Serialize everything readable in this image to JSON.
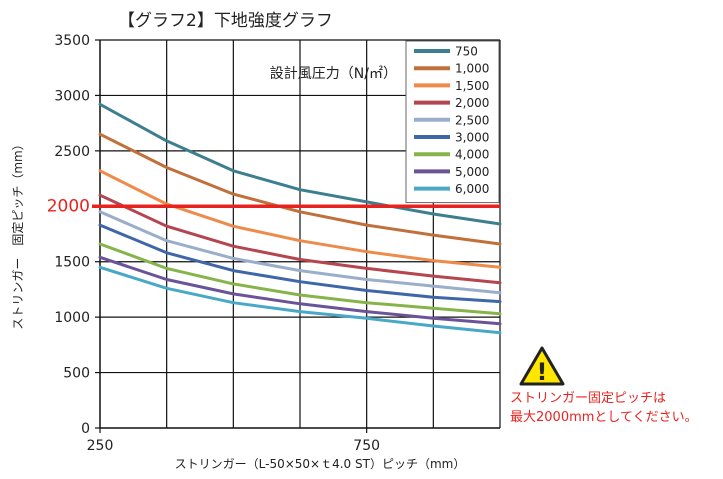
{
  "title": "【グラフ2】下地強度グラフ",
  "chart_data": {
    "type": "line",
    "title": "【グラフ2】下地強度グラフ",
    "xlabel": "ストリンガー（L-50×50×ｔ4.0 ST）ピッチ（mm）",
    "ylabel": "ストリンガー　固定ピッチ（mm）",
    "xlim": [
      250,
      1000
    ],
    "ylim": [
      0,
      3500
    ],
    "x_ticks": [
      {
        "value": 250,
        "label": "250"
      },
      {
        "value": 750,
        "label": "750"
      }
    ],
    "x_gridlines": [
      250,
      375,
      500,
      625,
      750,
      875,
      1000
    ],
    "y_ticks": [
      0,
      500,
      1000,
      1500,
      2000,
      2500,
      3000,
      3500
    ],
    "y_tick_labels": [
      "0",
      "500",
      "1000",
      "1500",
      "2000",
      "2500",
      "3000",
      "3500"
    ],
    "grid": true,
    "legend_position": "top-right",
    "legend_title": "設計風圧力（N/㎡）",
    "x": [
      250,
      375,
      500,
      625,
      750,
      875,
      1000
    ],
    "series": [
      {
        "name": "750",
        "color": "#3d7f8f",
        "values": [
          2920,
          2590,
          2320,
          2150,
          2040,
          1930,
          1840
        ]
      },
      {
        "name": "1,000",
        "color": "#c0703a",
        "values": [
          2650,
          2350,
          2110,
          1950,
          1830,
          1740,
          1660
        ]
      },
      {
        "name": "1,500",
        "color": "#ee8a4a",
        "values": [
          2320,
          2020,
          1820,
          1690,
          1590,
          1510,
          1450
        ]
      },
      {
        "name": "2,000",
        "color": "#b5454f",
        "values": [
          2100,
          1820,
          1640,
          1520,
          1440,
          1370,
          1310
        ]
      },
      {
        "name": "2,500",
        "color": "#9aaecb",
        "values": [
          1950,
          1690,
          1530,
          1420,
          1340,
          1280,
          1220
        ]
      },
      {
        "name": "3,000",
        "color": "#3e66a8",
        "values": [
          1830,
          1580,
          1420,
          1320,
          1240,
          1180,
          1140
        ]
      },
      {
        "name": "4,000",
        "color": "#86b44a",
        "values": [
          1660,
          1440,
          1300,
          1200,
          1130,
          1080,
          1030
        ]
      },
      {
        "name": "5,000",
        "color": "#6a5497",
        "values": [
          1540,
          1340,
          1210,
          1120,
          1050,
          990,
          940
        ]
      },
      {
        "name": "6,000",
        "color": "#4aa8c7",
        "values": [
          1450,
          1260,
          1130,
          1050,
          990,
          920,
          860
        ]
      }
    ],
    "reference_line": {
      "value": 2000,
      "label": "2000",
      "color": "#e8231f"
    }
  },
  "warning": {
    "icon": "warning-triangle-icon",
    "icon_glyph": "!",
    "line1": "ストリンガー固定ピッチは",
    "line2": "最大2000mmとしてください。",
    "color": "#e8231f"
  }
}
